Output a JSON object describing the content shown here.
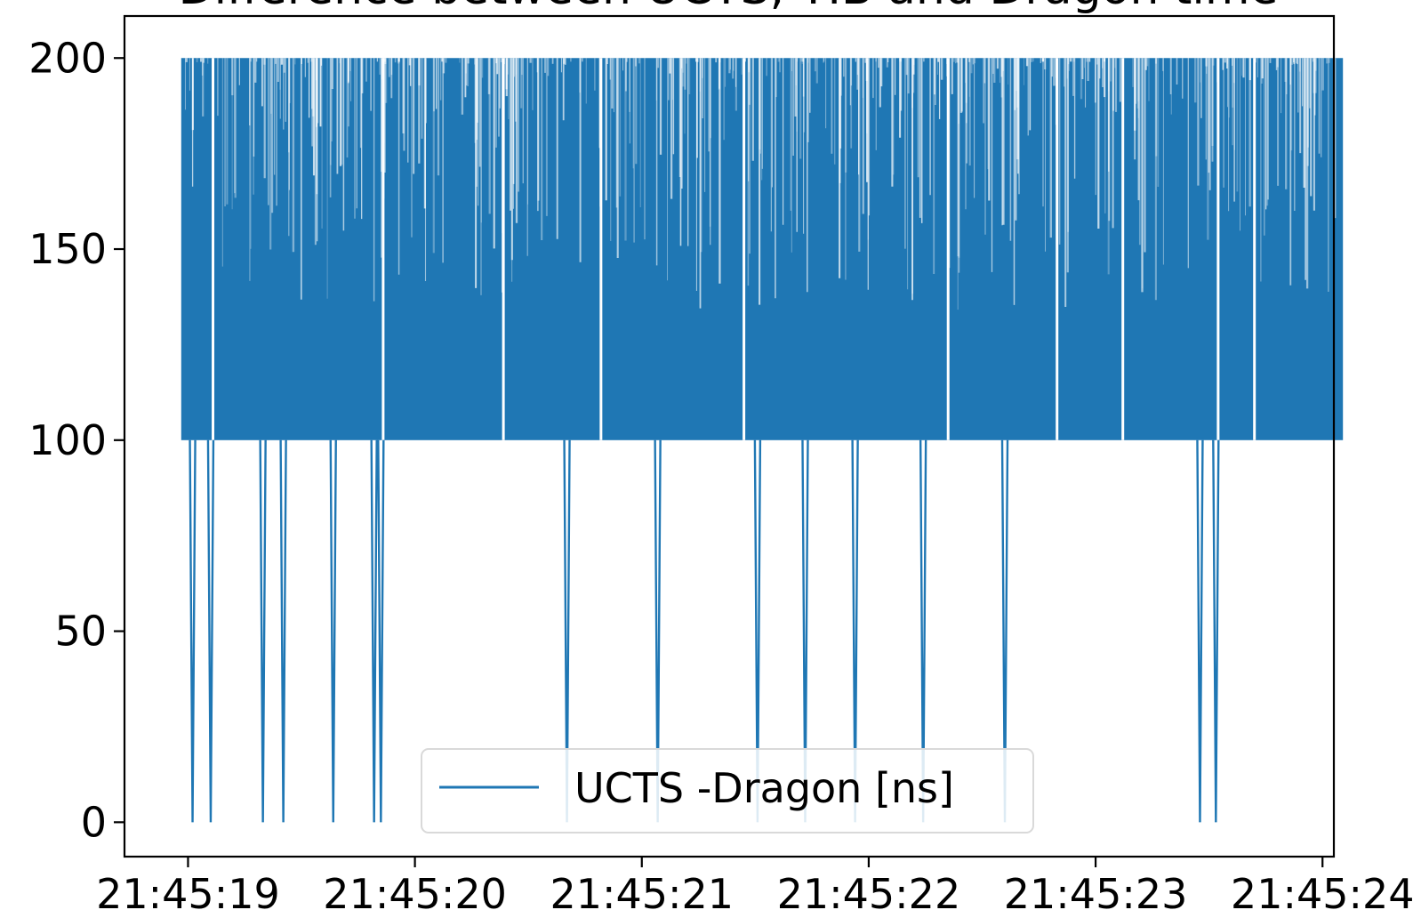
{
  "chart_data": {
    "type": "line",
    "title": "Difference between UCTS, TIB and Dragon time",
    "xlabel": "",
    "ylabel": "",
    "x_range": [
      "21:45:18.72",
      "21:45:24.05"
    ],
    "ylim": [
      -9,
      211
    ],
    "x_ticks": [
      "21:45:19",
      "21:45:20",
      "21:45:21",
      "21:45:22",
      "21:45:23",
      "21:45:24"
    ],
    "y_ticks": [
      "0",
      "50",
      "100",
      "150",
      "200"
    ],
    "grid": false,
    "legend": {
      "position": "lower-center",
      "entries": [
        "UCTS -Dragon [ns]"
      ]
    },
    "series": [
      {
        "name": "UCTS -Dragon [ns]",
        "color": "#1f77b4",
        "x_start": "21:45:18.97",
        "x_end": "21:45:24.09",
        "values_set": [
          0,
          100,
          200
        ],
        "description_levels": {
          "band_low": 100,
          "band_high": 200
        },
        "drop_to_zero_times": [
          "21:45:19.02",
          "21:45:19.10",
          "21:45:19.33",
          "21:45:19.42",
          "21:45:19.64",
          "21:45:19.82",
          "21:45:19.85",
          "21:45:20.67",
          "21:45:21.07",
          "21:45:21.51",
          "21:45:21.72",
          "21:45:21.94",
          "21:45:22.24",
          "21:45:22.60",
          "21:45:23.46",
          "21:45:23.53"
        ],
        "gap_times": [
          "21:45:19.11",
          "21:45:19.86",
          "21:45:20.39",
          "21:45:20.82",
          "21:45:21.45",
          "21:45:22.35",
          "21:45:22.83",
          "21:45:23.12",
          "21:45:23.54",
          "21:45:23.70"
        ]
      }
    ]
  }
}
